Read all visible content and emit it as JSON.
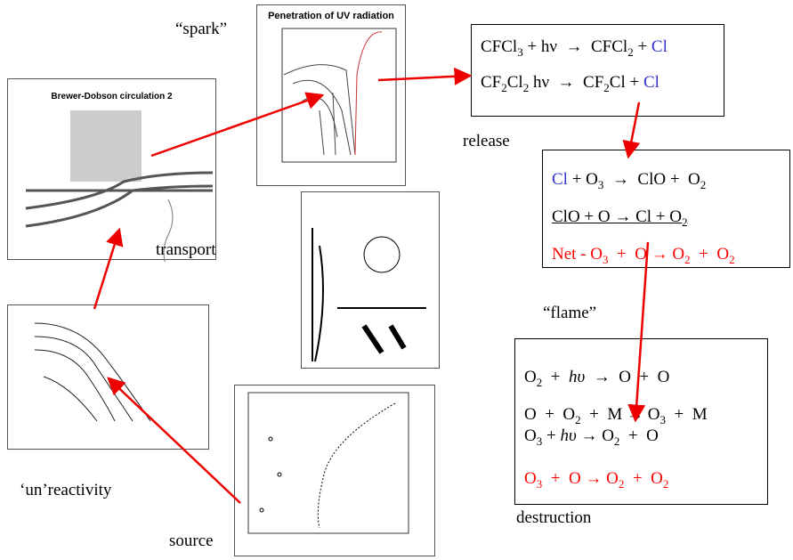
{
  "labels": {
    "spark": "“spark”",
    "release": "release",
    "flame": "“flame”",
    "transport": "transport",
    "unreactivity": "‘un’reactivity",
    "source": "source",
    "destruction": "destruction"
  },
  "images": {
    "uv_title": "Penetration of UV radiation",
    "bd_title": "Brewer-Dobson circulation 2"
  },
  "boxes": [
    {
      "lines": [
        {
          "parts": [
            {
              "text": "CFCl"
            },
            {
              "text": "3",
              "sub": true
            },
            {
              "text": " + hν  →  CFCl"
            },
            {
              "text": "2",
              "sub": true
            },
            {
              "text": " + "
            },
            {
              "text": "Cl",
              "color": "#3333cc"
            }
          ]
        },
        {
          "parts": [
            {
              "text": "CF"
            },
            {
              "text": "2",
              "sub": true
            },
            {
              "text": "Cl"
            },
            {
              "text": "2",
              "sub": true
            },
            {
              "text": " hν  →  CF"
            },
            {
              "text": "2",
              "sub": true
            },
            {
              "text": "Cl + "
            },
            {
              "text": "Cl",
              "color": "#3333cc"
            }
          ]
        }
      ]
    },
    {
      "lines": [
        {
          "parts": [
            {
              "text": "Cl",
              "color": "#3333cc"
            },
            {
              "text": " + O"
            },
            {
              "text": "3",
              "sub": true
            },
            {
              "text": "  →  ClO +  O"
            },
            {
              "text": "2",
              "sub": true
            }
          ]
        },
        {
          "underline": true,
          "parts": [
            {
              "text": "ClO + O → Cl + O"
            },
            {
              "text": "2",
              "sub": true
            }
          ]
        },
        {
          "color": "#ff0000",
          "parts": [
            {
              "text": "Net - O"
            },
            {
              "text": "3",
              "sub": true
            },
            {
              "text": "  +  O → O"
            },
            {
              "text": "2",
              "sub": true
            },
            {
              "text": "  +  O"
            },
            {
              "text": "2",
              "sub": true
            }
          ]
        }
      ]
    },
    {
      "lines": [
        {
          "parts": [
            {
              "text": "O"
            },
            {
              "text": "2",
              "sub": true
            },
            {
              "text": "  +  "
            },
            {
              "text": "hυ",
              "italic": true
            },
            {
              "text": "  →  O  +  O"
            }
          ]
        },
        {
          "parts": [
            {
              "text": "O  +  O"
            },
            {
              "text": "2",
              "sub": true
            },
            {
              "text": "  +  M → O"
            },
            {
              "text": "3",
              "sub": true
            },
            {
              "text": "  +  M"
            }
          ]
        },
        {
          "parts": [
            {
              "text": "O"
            },
            {
              "text": "3",
              "sub": true
            },
            {
              "text": " + "
            },
            {
              "text": "hυ",
              "italic": true
            },
            {
              "text": " → O"
            },
            {
              "text": "2",
              "sub": true
            },
            {
              "text": "  +  O"
            }
          ]
        },
        {
          "color": "#ff0000",
          "parts": [
            {
              "text": "O"
            },
            {
              "text": "3",
              "sub": true
            },
            {
              "text": "  +  O → O"
            },
            {
              "text": "2",
              "sub": true
            },
            {
              "text": "  +  O"
            },
            {
              "text": "2",
              "sub": true
            }
          ]
        }
      ]
    }
  ]
}
